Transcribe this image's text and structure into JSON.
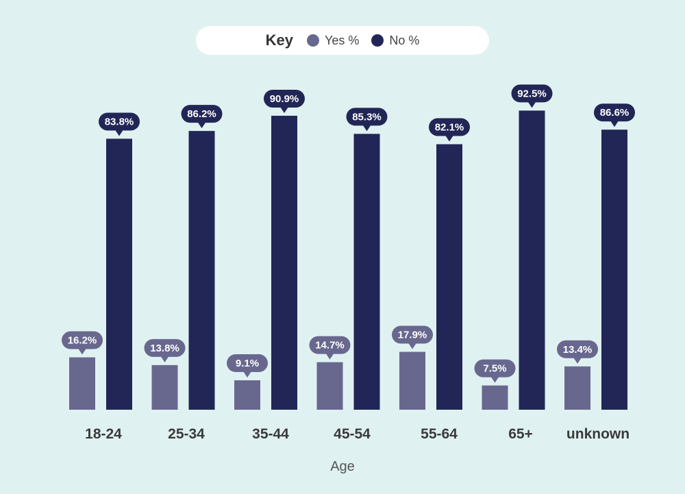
{
  "legend": {
    "title": "Key",
    "items": [
      {
        "label": "Yes %",
        "color": "#68688f"
      },
      {
        "label": "No %",
        "color": "#222656"
      }
    ]
  },
  "chart_data": {
    "type": "bar",
    "categories": [
      "18-24",
      "25-34",
      "35-44",
      "45-54",
      "55-64",
      "65+",
      "unknown"
    ],
    "series": [
      {
        "name": "Yes %",
        "color": "#68688f",
        "values": [
          16.2,
          13.8,
          9.1,
          14.7,
          17.9,
          7.5,
          13.4
        ],
        "labels": [
          "16.2%",
          "13.8%",
          "9.1%",
          "14.7%",
          "17.9%",
          "7.5%",
          "13.4%"
        ]
      },
      {
        "name": "No %",
        "color": "#222656",
        "values": [
          83.8,
          86.2,
          90.9,
          85.3,
          82.1,
          92.5,
          86.6
        ],
        "labels": [
          "83.8%",
          "86.2%",
          "90.9%",
          "85.3%",
          "82.1%",
          "92.5%",
          "86.6%"
        ]
      }
    ],
    "xlabel": "Age",
    "ylim": [
      0,
      100
    ],
    "grid": false,
    "legend_position": "top-center"
  }
}
